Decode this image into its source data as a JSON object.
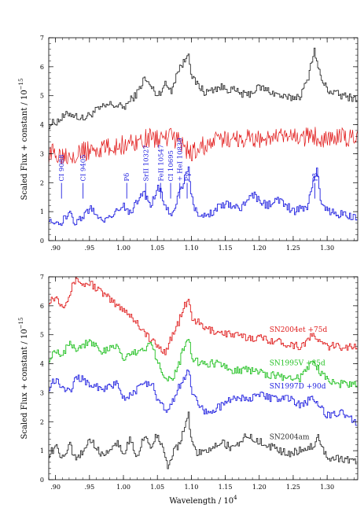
{
  "chart_data": [
    {
      "type": "line",
      "xlim": [
        0.89,
        1.345
      ],
      "ylim": [
        0,
        7
      ],
      "xticks": [
        0.9,
        0.95,
        1.0,
        1.05,
        1.1,
        1.15,
        1.2,
        1.25,
        1.3
      ],
      "xtick_labels": [
        ".90",
        ".95",
        "1.00",
        "1.05",
        "1.10",
        "1.15",
        "1.20",
        "1.25",
        "1.30"
      ],
      "yticks": [
        0,
        1,
        2,
        3,
        4,
        5,
        6,
        7
      ],
      "ytick_labels": [
        "0",
        "1",
        "2",
        "3",
        "4",
        "5",
        "6",
        "7"
      ],
      "ylabel": "Scaled Flux + constant / 10",
      "ylabel_exp": "−15",
      "series": [
        {
          "color": "#303030",
          "x": [
            0.89,
            0.9,
            0.92,
            0.94,
            0.96,
            0.98,
            1.0,
            1.02,
            1.03,
            1.05,
            1.06,
            1.07,
            1.08,
            1.09,
            1.095,
            1.1,
            1.12,
            1.14,
            1.16,
            1.18,
            1.2,
            1.22,
            1.24,
            1.26,
            1.27,
            1.28,
            1.29,
            1.3,
            1.32,
            1.345
          ],
          "y": [
            4.0,
            4.1,
            4.4,
            4.2,
            4.5,
            4.7,
            4.6,
            5.1,
            5.6,
            5.0,
            5.4,
            5.2,
            5.9,
            6.2,
            6.6,
            5.6,
            5.1,
            5.3,
            5.2,
            5.0,
            5.3,
            5.1,
            4.9,
            5.0,
            5.5,
            6.6,
            5.6,
            5.2,
            5.0,
            4.9
          ]
        },
        {
          "color": "#e01010",
          "x": [
            0.89,
            0.92,
            0.95,
            0.98,
            1.0,
            1.03,
            1.06,
            1.08,
            1.09,
            1.1,
            1.12,
            1.15,
            1.18,
            1.2,
            1.22,
            1.25,
            1.28,
            1.3,
            1.32,
            1.345
          ],
          "y": [
            3.0,
            3.0,
            3.1,
            3.2,
            3.3,
            3.5,
            3.55,
            3.5,
            3.2,
            3.0,
            3.3,
            3.5,
            3.55,
            3.5,
            3.55,
            3.55,
            3.6,
            3.55,
            3.55,
            3.5
          ]
        },
        {
          "color": "#2020e0",
          "x": [
            0.89,
            0.9,
            0.92,
            0.93,
            0.95,
            0.97,
            1.0,
            1.01,
            1.02,
            1.03,
            1.04,
            1.05,
            1.06,
            1.07,
            1.08,
            1.09,
            1.095,
            1.1,
            1.11,
            1.13,
            1.15,
            1.17,
            1.19,
            1.21,
            1.23,
            1.25,
            1.27,
            1.28,
            1.285,
            1.29,
            1.3,
            1.32,
            1.345
          ],
          "y": [
            0.8,
            0.5,
            0.9,
            0.6,
            1.1,
            0.7,
            1.2,
            0.9,
            1.4,
            1.6,
            1.2,
            1.9,
            1.3,
            0.9,
            1.5,
            2.2,
            2.5,
            1.5,
            0.7,
            1.0,
            1.3,
            1.1,
            1.6,
            1.2,
            1.4,
            1.0,
            1.2,
            2.1,
            2.5,
            1.3,
            1.0,
            0.9,
            0.8
          ]
        }
      ],
      "annotations": [
        {
          "text": "CI 9088",
          "x": 0.9088
        },
        {
          "text": "CI 9405",
          "x": 0.9405
        },
        {
          "text": "Pδ",
          "x": 1.0049
        },
        {
          "text": "SrII 10327",
          "x": 1.0327
        },
        {
          "text": "FeII 10547",
          "x": 1.0547
        },
        {
          "text": "CI 10695",
          "x": 1.0695
        },
        {
          "text": "+ HeI 10830",
          "x": 1.083
        },
        {
          "text": "Pγ",
          "x": 1.0938
        },
        {
          "text": "Pβ",
          "x": 1.2818
        }
      ],
      "annotation_color": "#2020e0"
    },
    {
      "type": "line",
      "xlim": [
        0.89,
        1.345
      ],
      "ylim": [
        0,
        7
      ],
      "xticks": [
        0.9,
        0.95,
        1.0,
        1.05,
        1.1,
        1.15,
        1.2,
        1.25,
        1.3
      ],
      "xtick_labels": [
        ".90",
        ".95",
        "1.00",
        "1.05",
        "1.10",
        "1.15",
        "1.20",
        "1.25",
        "1.30"
      ],
      "yticks": [
        0,
        1,
        2,
        3,
        4,
        5,
        6,
        7
      ],
      "ytick_labels": [
        "0",
        "1",
        "2",
        "3",
        "4",
        "5",
        "6",
        "7"
      ],
      "xlabel": "Wavelength / 10",
      "xlabel_exp": "4",
      "ylabel": "Scaled Flux + constant / 10",
      "ylabel_exp": "−15",
      "series": [
        {
          "name": "SN2004et  +75d",
          "color": "#e02020",
          "x": [
            0.89,
            0.9,
            0.91,
            0.92,
            0.93,
            0.94,
            0.95,
            0.97,
            0.99,
            1.0,
            1.02,
            1.04,
            1.06,
            1.07,
            1.08,
            1.09,
            1.095,
            1.1,
            1.12,
            1.14,
            1.16,
            1.18,
            1.2,
            1.22,
            1.24,
            1.26,
            1.28,
            1.29,
            1.3,
            1.32,
            1.345
          ],
          "y": [
            6.2,
            6.3,
            6.0,
            6.4,
            7.0,
            6.7,
            6.8,
            6.4,
            6.0,
            5.9,
            5.4,
            4.8,
            4.4,
            4.9,
            5.4,
            6.0,
            6.2,
            5.6,
            5.2,
            5.1,
            5.0,
            4.9,
            4.9,
            4.8,
            4.7,
            4.6,
            5.0,
            4.7,
            4.6,
            4.6,
            4.6
          ]
        },
        {
          "name": "SN1995V  +85d",
          "color": "#20c020",
          "x": [
            0.89,
            0.9,
            0.91,
            0.92,
            0.93,
            0.95,
            0.97,
            0.99,
            1.0,
            1.02,
            1.04,
            1.05,
            1.06,
            1.07,
            1.08,
            1.09,
            1.095,
            1.1,
            1.12,
            1.14,
            1.16,
            1.18,
            1.2,
            1.22,
            1.24,
            1.26,
            1.28,
            1.29,
            1.3,
            1.32,
            1.345
          ],
          "y": [
            4.2,
            4.5,
            4.3,
            4.8,
            4.5,
            4.8,
            4.4,
            4.6,
            4.2,
            4.4,
            4.7,
            4.1,
            3.6,
            3.4,
            3.9,
            4.7,
            5.0,
            4.1,
            4.0,
            4.0,
            3.8,
            3.8,
            3.7,
            3.6,
            3.5,
            3.5,
            4.1,
            3.7,
            3.4,
            3.3,
            3.3
          ]
        },
        {
          "name": "SN1997D  +90d",
          "color": "#2020e0",
          "x": [
            0.89,
            0.9,
            0.91,
            0.92,
            0.93,
            0.95,
            0.97,
            0.99,
            1.0,
            1.02,
            1.04,
            1.05,
            1.06,
            1.07,
            1.08,
            1.09,
            1.095,
            1.1,
            1.12,
            1.14,
            1.16,
            1.18,
            1.2,
            1.22,
            1.24,
            1.26,
            1.28,
            1.29,
            1.3,
            1.32,
            1.345
          ],
          "y": [
            3.2,
            3.5,
            3.2,
            3.0,
            3.6,
            3.3,
            3.1,
            3.3,
            2.8,
            3.1,
            3.4,
            2.7,
            2.4,
            2.6,
            3.2,
            3.5,
            3.8,
            3.0,
            2.3,
            2.5,
            2.8,
            2.8,
            2.9,
            2.8,
            2.8,
            2.6,
            2.8,
            2.5,
            2.2,
            2.3,
            1.9
          ]
        },
        {
          "name": "SN2004am",
          "color": "#303030",
          "x": [
            0.89,
            0.9,
            0.91,
            0.92,
            0.93,
            0.95,
            0.97,
            0.99,
            1.0,
            1.01,
            1.02,
            1.03,
            1.04,
            1.05,
            1.06,
            1.065,
            1.07,
            1.08,
            1.09,
            1.095,
            1.1,
            1.11,
            1.12,
            1.14,
            1.16,
            1.18,
            1.2,
            1.22,
            1.24,
            1.26,
            1.28,
            1.285,
            1.29,
            1.3,
            1.32,
            1.345
          ],
          "y": [
            0.9,
            1.1,
            0.8,
            1.2,
            0.6,
            1.4,
            0.8,
            1.3,
            0.9,
            1.4,
            0.8,
            1.5,
            1.1,
            1.6,
            0.8,
            0.4,
            0.8,
            1.2,
            1.8,
            2.3,
            1.2,
            0.9,
            1.0,
            1.3,
            1.1,
            1.5,
            1.3,
            1.1,
            0.9,
            1.0,
            1.2,
            1.6,
            1.1,
            0.8,
            0.7,
            0.6
          ]
        }
      ]
    }
  ]
}
